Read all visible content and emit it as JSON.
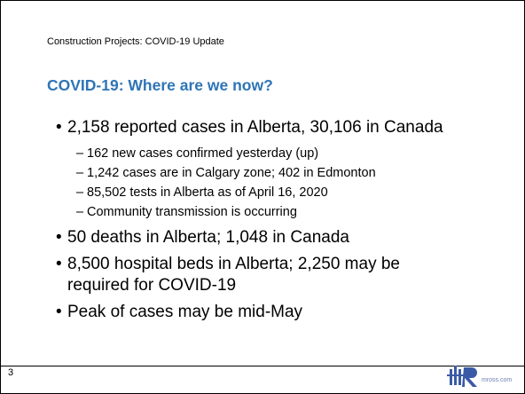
{
  "header": "Construction Projects: COVID-19 Update",
  "title": "COVID-19: Where are we now?",
  "bullets": [
    {
      "text": "2,158 reported cases in Alberta, 30,106 in Canada",
      "subs": [
        "162 new cases confirmed yesterday (up)",
        "1,242 cases are in Calgary zone; 402 in Edmonton",
        "85,502 tests in Alberta as of April 16, 2020",
        "Community transmission is occurring"
      ]
    },
    {
      "text": "50 deaths in Alberta; 1,048 in Canada"
    },
    {
      "text": "8,500 hospital beds in Alberta; 2,250 may be required for COVID-19"
    },
    {
      "text": "Peak of cases may be mid-May"
    }
  ],
  "page_number": "3",
  "logo_text": "mross.com"
}
